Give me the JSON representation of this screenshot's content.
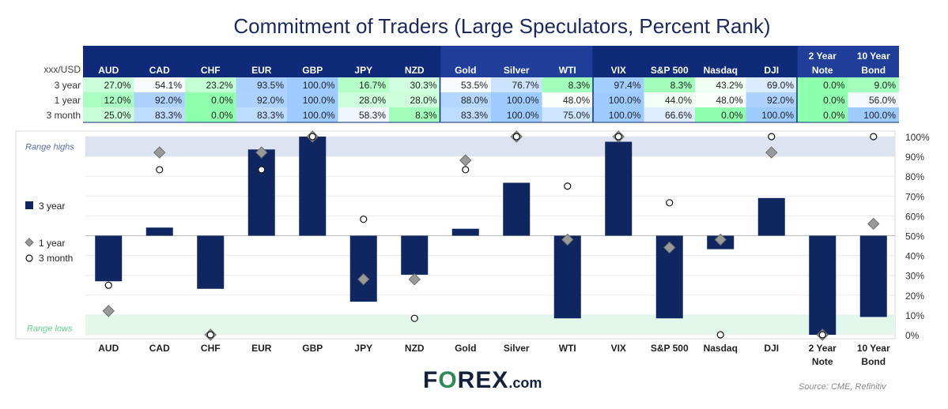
{
  "title": "Commitment of Traders (Large Speculators, Percent Rank)",
  "table": {
    "corner_label": "xxx/USD",
    "headers": [
      "AUD",
      "CAD",
      "CHF",
      "EUR",
      "GBP",
      "JPY",
      "NZD",
      "Gold",
      "Silver",
      "WTI",
      "VIX",
      "S&P 500",
      "Nasdaq",
      "DJI",
      "2 Year Note",
      "10 Year Bond"
    ],
    "row_labels": [
      "3 year",
      "1 year",
      "3 month"
    ],
    "rows": [
      [
        "27.0%",
        "54.1%",
        "23.2%",
        "93.5%",
        "100.0%",
        "16.7%",
        "30.3%",
        "53.5%",
        "76.7%",
        "8.3%",
        "97.4%",
        "8.3%",
        "43.2%",
        "69.0%",
        "0.0%",
        "9.0%"
      ],
      [
        "12.0%",
        "92.0%",
        "0.0%",
        "92.0%",
        "100.0%",
        "28.0%",
        "28.0%",
        "88.0%",
        "100.0%",
        "48.0%",
        "100.0%",
        "44.0%",
        "48.0%",
        "92.0%",
        "0.0%",
        "56.0%"
      ],
      [
        "25.0%",
        "83.3%",
        "0.0%",
        "83.3%",
        "100.0%",
        "58.3%",
        "8.3%",
        "83.3%",
        "100.0%",
        "75.0%",
        "100.0%",
        "66.6%",
        "0.0%",
        "100.0%",
        "0.0%",
        "100.0%"
      ]
    ]
  },
  "chart_data": {
    "type": "bar",
    "categories": [
      "AUD",
      "CAD",
      "CHF",
      "EUR",
      "GBP",
      "JPY",
      "NZD",
      "Gold",
      "Silver",
      "WTI",
      "VIX",
      "S&P 500",
      "Nasdaq",
      "DJI",
      "2 Year Note",
      "10 Year Bond"
    ],
    "baseline": 50,
    "ylim": [
      0,
      100
    ],
    "y_ticks": [
      "0%",
      "10%",
      "20%",
      "30%",
      "40%",
      "50%",
      "60%",
      "70%",
      "80%",
      "90%",
      "100%"
    ],
    "series": [
      {
        "name": "3 year",
        "marker": "bar",
        "values": [
          27.0,
          54.1,
          23.2,
          93.5,
          100.0,
          16.7,
          30.3,
          53.5,
          76.7,
          8.3,
          97.4,
          8.3,
          43.2,
          69.0,
          0.0,
          9.0
        ]
      },
      {
        "name": "1 year",
        "marker": "diamond",
        "values": [
          12.0,
          92.0,
          0.0,
          92.0,
          100.0,
          28.0,
          28.0,
          88.0,
          100.0,
          48.0,
          100.0,
          44.0,
          48.0,
          92.0,
          0.0,
          56.0
        ]
      },
      {
        "name": "3 month",
        "marker": "circle",
        "values": [
          25.0,
          83.3,
          0.0,
          83.3,
          100.0,
          58.3,
          8.3,
          83.3,
          100.0,
          75.0,
          100.0,
          66.6,
          0.0,
          100.0,
          0.0,
          100.0
        ]
      }
    ],
    "bands": [
      {
        "label": "Range highs",
        "from": 90,
        "to": 100,
        "color": "#dde3f0"
      },
      {
        "label": "Range lows",
        "from": 0,
        "to": 10,
        "color": "#e3f7ea"
      }
    ],
    "legend_position": "left",
    "grid": true
  },
  "colors": {
    "bar": "#0f2660",
    "header_bg": "#0f2a78",
    "header_bg_alt": "#1f3f9a",
    "diamond": "#9a9a9a",
    "range_high_text": "#5a6fa8",
    "range_low_text": "#5fd08a",
    "title": "#1a2a5e"
  },
  "logo": {
    "brand_pre": "F",
    "brand_o": "O",
    "brand_post": "REX",
    "suffix": ".com"
  },
  "source": "Source: CME, Refinitiv"
}
